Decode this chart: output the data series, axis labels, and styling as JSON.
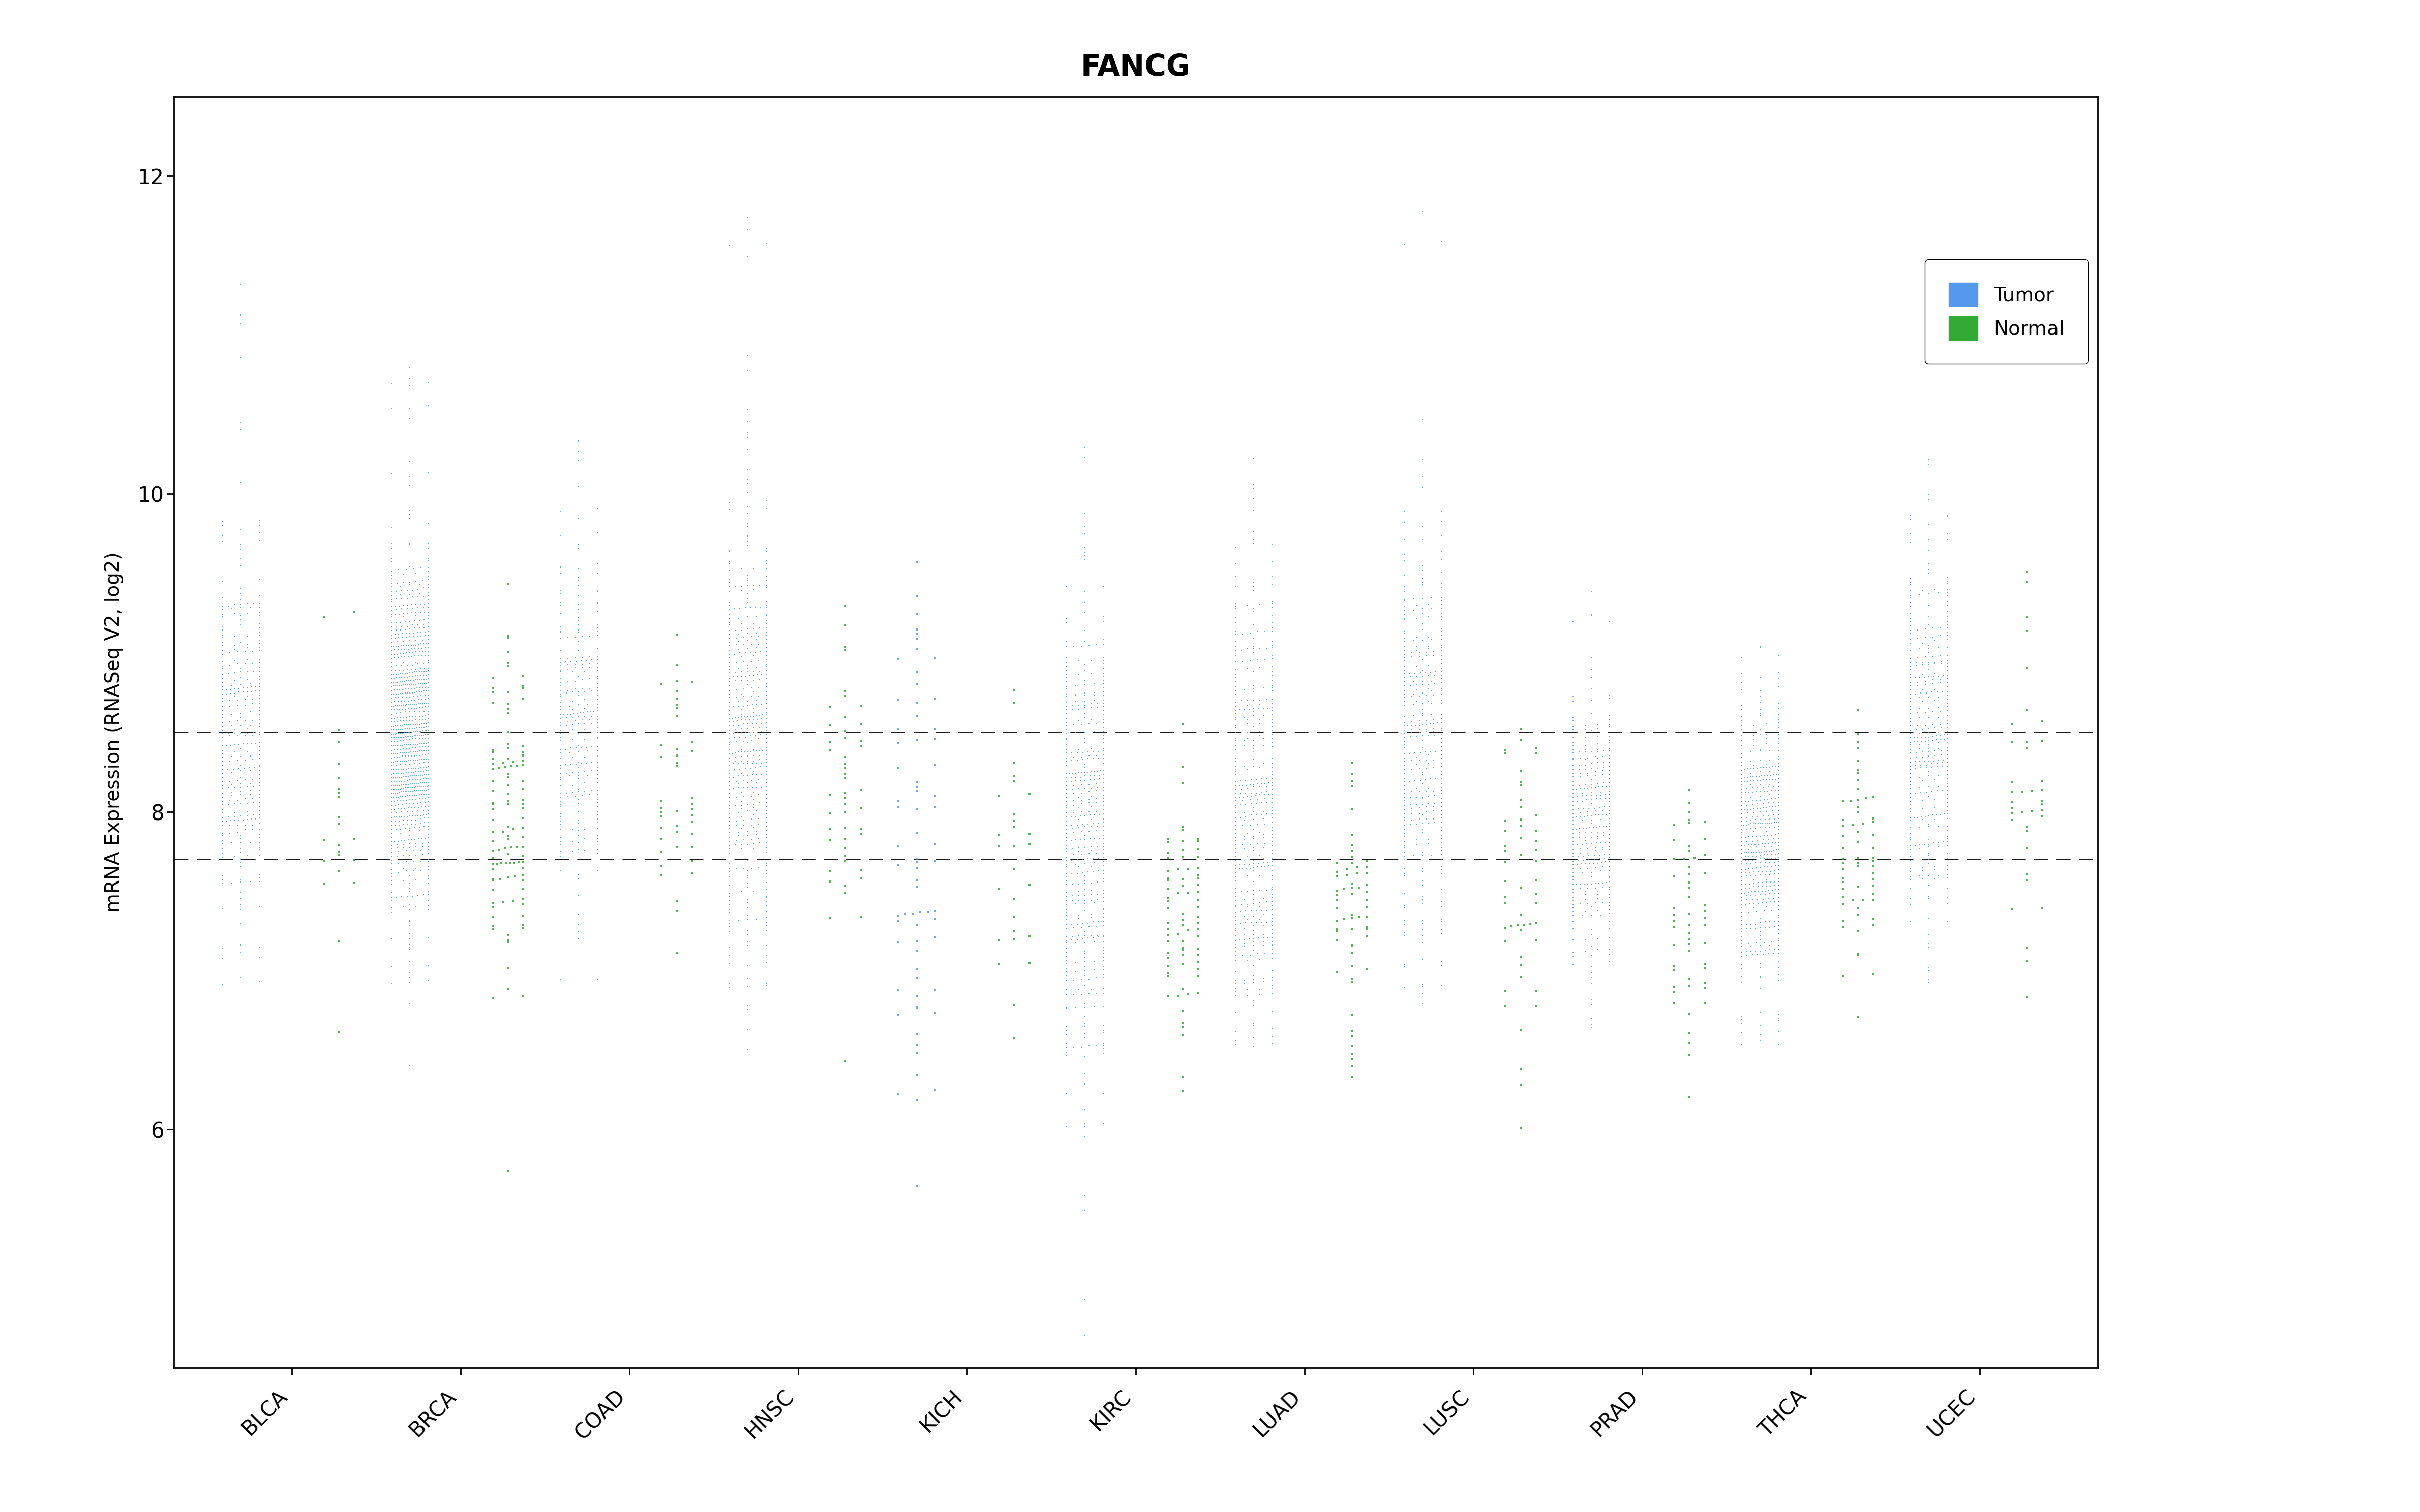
{
  "title": "FANCG",
  "ylabel": "mRNA Expression (RNASeq V2, log2)",
  "categories": [
    "BLCA",
    "BRCA",
    "COAD",
    "HNSC",
    "KICH",
    "KIRC",
    "LUAD",
    "LUSC",
    "PRAD",
    "THCA",
    "UCEC"
  ],
  "hline1": 8.5,
  "hline2": 7.7,
  "ylim": [
    4.5,
    12.5
  ],
  "yticks": [
    6,
    8,
    10,
    12
  ],
  "tumor_color": "#5599EE",
  "normal_color": "#33AA33",
  "background_color": "#FFFFFF",
  "tumor_params": {
    "BLCA": {
      "mean": 8.5,
      "std": 0.6,
      "n": 350,
      "lo": 6.8,
      "hi": 11.4
    },
    "BRCA": {
      "mean": 8.5,
      "std": 0.55,
      "n": 950,
      "lo": 6.9,
      "hi": 10.8
    },
    "COAD": {
      "mean": 8.5,
      "std": 0.55,
      "n": 280,
      "lo": 7.2,
      "hi": 10.4
    },
    "HNSC": {
      "mean": 8.5,
      "std": 0.7,
      "n": 500,
      "lo": 6.8,
      "hi": 11.8
    },
    "KICH": {
      "mean": 7.8,
      "std": 0.85,
      "n": 66,
      "lo": 5.4,
      "hi": 9.2
    },
    "KIRC": {
      "mean": 7.9,
      "std": 0.7,
      "n": 480,
      "lo": 4.7,
      "hi": 9.9
    },
    "LUAD": {
      "mean": 8.0,
      "std": 0.75,
      "n": 450,
      "lo": 7.0,
      "hi": 10.1
    },
    "LUSC": {
      "mean": 8.5,
      "std": 0.65,
      "n": 370,
      "lo": 7.1,
      "hi": 11.8
    },
    "PRAD": {
      "mean": 7.9,
      "std": 0.42,
      "n": 330,
      "lo": 6.6,
      "hi": 9.4
    },
    "THCA": {
      "mean": 7.8,
      "std": 0.48,
      "n": 490,
      "lo": 6.5,
      "hi": 9.1
    },
    "UCEC": {
      "mean": 8.5,
      "std": 0.62,
      "n": 380,
      "lo": 7.2,
      "hi": 11.2
    }
  },
  "normal_params": {
    "BLCA": {
      "mean": 7.9,
      "std": 0.42,
      "n": 20,
      "lo": 6.35,
      "hi": 9.3
    },
    "BRCA": {
      "mean": 7.95,
      "std": 0.52,
      "n": 110,
      "lo": 5.7,
      "hi": 9.2
    },
    "COAD": {
      "mean": 8.15,
      "std": 0.4,
      "n": 40,
      "lo": 7.1,
      "hi": 9.0
    },
    "HNSC": {
      "mean": 8.1,
      "std": 0.48,
      "n": 45,
      "lo": 6.3,
      "hi": 9.3
    },
    "KICH": {
      "mean": 7.7,
      "std": 0.5,
      "n": 25,
      "lo": 6.35,
      "hi": 8.8
    },
    "KIRC": {
      "mean": 7.3,
      "std": 0.42,
      "n": 72,
      "lo": 6.3,
      "hi": 8.4
    },
    "LUAD": {
      "mean": 7.35,
      "std": 0.42,
      "n": 58,
      "lo": 6.3,
      "hi": 8.3
    },
    "LUSC": {
      "mean": 7.6,
      "std": 0.48,
      "n": 50,
      "lo": 5.9,
      "hi": 8.6
    },
    "PRAD": {
      "mean": 7.2,
      "std": 0.38,
      "n": 52,
      "lo": 6.55,
      "hi": 8.0
    },
    "THCA": {
      "mean": 7.65,
      "std": 0.42,
      "n": 59,
      "lo": 6.5,
      "hi": 8.65
    },
    "UCEC": {
      "mean": 8.0,
      "std": 0.43,
      "n": 35,
      "lo": 6.95,
      "hi": 9.6
    }
  }
}
